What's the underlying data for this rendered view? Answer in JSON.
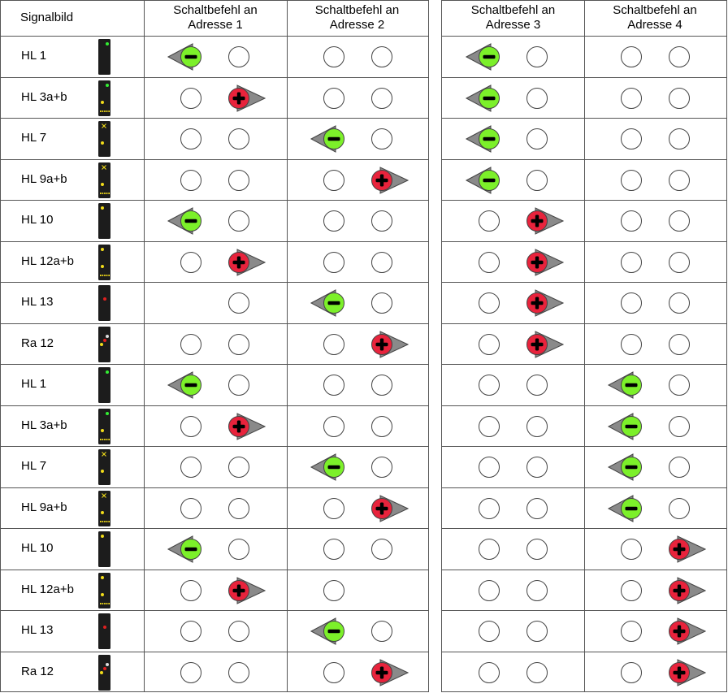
{
  "header": {
    "signal_column": "Signalbild",
    "addresses": [
      {
        "line1": "Schaltbefehl an",
        "line2": "Adresse  1"
      },
      {
        "line1": "Schaltbefehl an",
        "line2": "Adresse  2"
      },
      {
        "line1": "Schaltbefehl an",
        "line2": "Adresse  3"
      },
      {
        "line1": "Schaltbefehl an",
        "line2": "Adresse  4"
      }
    ]
  },
  "colors": {
    "minus_fill": "#7cf02a",
    "plus_fill": "#e8233c",
    "arrow_gray": "#8a8a8a",
    "mast_body": "#1c1c1c",
    "lamp_green": "#33ee33",
    "lamp_yellow": "#f2dc1a",
    "lamp_red": "#e02020",
    "grid": "#555555"
  },
  "rows": [
    {
      "label": "HL 1",
      "aspect": "green",
      "cells": [
        [
          "minus",
          "empty"
        ],
        [
          "empty",
          "empty"
        ],
        [
          "minus",
          "empty"
        ],
        [
          "empty",
          "empty"
        ]
      ]
    },
    {
      "label": "HL 3a+b",
      "aspect": "green-yellow-bar",
      "cells": [
        [
          "empty",
          "plus"
        ],
        [
          "empty",
          "empty"
        ],
        [
          "minus",
          "empty"
        ],
        [
          "empty",
          "empty"
        ]
      ]
    },
    {
      "label": "HL 7",
      "aspect": "x",
      "cells": [
        [
          "empty",
          "empty"
        ],
        [
          "minus",
          "empty"
        ],
        [
          "minus",
          "empty"
        ],
        [
          "empty",
          "empty"
        ]
      ]
    },
    {
      "label": "HL 9a+b",
      "aspect": "x-yellow-bar",
      "cells": [
        [
          "empty",
          "empty"
        ],
        [
          "empty",
          "plus"
        ],
        [
          "minus",
          "empty"
        ],
        [
          "empty",
          "empty"
        ]
      ]
    },
    {
      "label": "HL 10",
      "aspect": "yellow",
      "cells": [
        [
          "minus",
          "empty"
        ],
        [
          "empty",
          "empty"
        ],
        [
          "empty",
          "plus"
        ],
        [
          "empty",
          "empty"
        ]
      ]
    },
    {
      "label": "HL 12a+b",
      "aspect": "yellow-yellow-bar",
      "cells": [
        [
          "empty",
          "plus"
        ],
        [
          "empty",
          "empty"
        ],
        [
          "empty",
          "plus"
        ],
        [
          "empty",
          "empty"
        ]
      ]
    },
    {
      "label": "HL 13",
      "aspect": "red",
      "cells": [
        [
          "none",
          "empty"
        ],
        [
          "minus",
          "empty"
        ],
        [
          "empty",
          "plus"
        ],
        [
          "empty",
          "empty"
        ]
      ]
    },
    {
      "label": "Ra 12",
      "aspect": "ra12",
      "cells": [
        [
          "empty",
          "empty"
        ],
        [
          "empty",
          "plus"
        ],
        [
          "empty",
          "plus"
        ],
        [
          "empty",
          "empty"
        ]
      ]
    },
    {
      "label": "HL 1",
      "aspect": "green",
      "cells": [
        [
          "minus",
          "empty"
        ],
        [
          "empty",
          "empty"
        ],
        [
          "empty",
          "empty"
        ],
        [
          "minus",
          "empty"
        ]
      ]
    },
    {
      "label": "HL 3a+b",
      "aspect": "green-yellow-bar",
      "cells": [
        [
          "empty",
          "plus"
        ],
        [
          "empty",
          "empty"
        ],
        [
          "empty",
          "empty"
        ],
        [
          "minus",
          "empty"
        ]
      ]
    },
    {
      "label": "HL 7",
      "aspect": "x",
      "cells": [
        [
          "empty",
          "empty"
        ],
        [
          "minus",
          "empty"
        ],
        [
          "empty",
          "empty"
        ],
        [
          "minus",
          "empty"
        ]
      ]
    },
    {
      "label": "HL 9a+b",
      "aspect": "x-yellow-bar",
      "cells": [
        [
          "empty",
          "empty"
        ],
        [
          "empty",
          "plus"
        ],
        [
          "empty",
          "empty"
        ],
        [
          "minus",
          "empty"
        ]
      ]
    },
    {
      "label": "HL 10",
      "aspect": "yellow",
      "cells": [
        [
          "minus",
          "empty"
        ],
        [
          "empty",
          "empty"
        ],
        [
          "empty",
          "empty"
        ],
        [
          "empty",
          "plus"
        ]
      ]
    },
    {
      "label": "HL 12a+b",
      "aspect": "yellow-yellow-bar",
      "cells": [
        [
          "empty",
          "plus"
        ],
        [
          "empty",
          "none"
        ],
        [
          "empty",
          "empty"
        ],
        [
          "empty",
          "plus"
        ]
      ]
    },
    {
      "label": "HL 13",
      "aspect": "red",
      "cells": [
        [
          "empty",
          "empty"
        ],
        [
          "minus",
          "empty"
        ],
        [
          "empty",
          "empty"
        ],
        [
          "empty",
          "plus"
        ]
      ]
    },
    {
      "label": "Ra 12",
      "aspect": "ra12",
      "cells": [
        [
          "empty",
          "empty"
        ],
        [
          "empty",
          "plus"
        ],
        [
          "empty",
          "empty"
        ],
        [
          "empty",
          "plus"
        ]
      ]
    }
  ]
}
